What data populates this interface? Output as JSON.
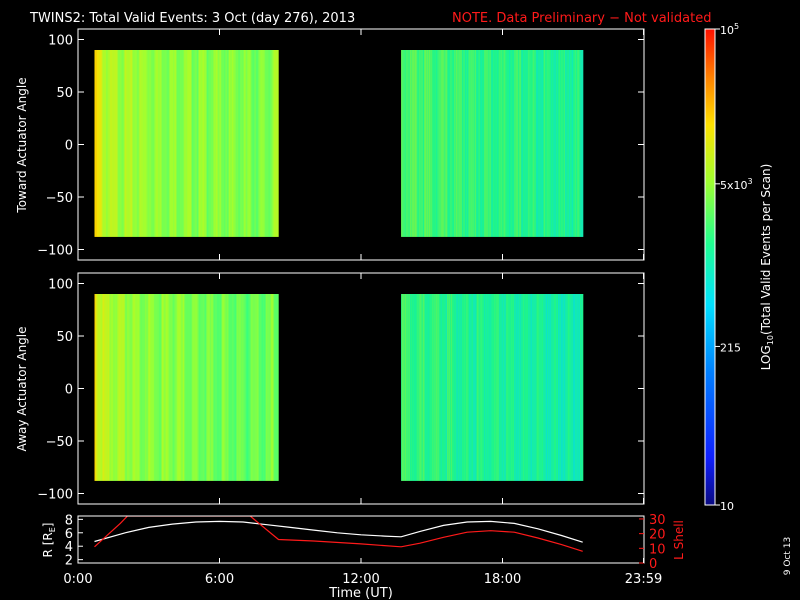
{
  "title": "TWINS2: Total Valid Events:  3 Oct (day 276), 2013",
  "note": "NOTE. Data Preliminary − Not validated",
  "date_stamp": "9 Oct 13",
  "colors": {
    "background": "#000000",
    "axes": "#ffffff",
    "note": "#ff1a1a",
    "r_line": "#ffffff",
    "lshell_line": "#ff1a1a"
  },
  "chart_data": [
    {
      "type": "heatmap",
      "ylabel": "Toward Actuator Angle",
      "xlim": [
        0,
        24
      ],
      "ylim": [
        -110,
        110
      ],
      "yticks": [
        "100",
        "50",
        "0",
        "−50",
        "−100"
      ],
      "data_blocks": [
        {
          "t_start": 0.7,
          "t_end": 8.5,
          "angle_min": -88,
          "angle_max": 90,
          "approx_log10": [
            3.9,
            3.6
          ]
        },
        {
          "t_start": 13.7,
          "t_end": 21.4,
          "angle_min": -88,
          "angle_max": 90,
          "approx_log10": [
            3.5,
            3.2
          ]
        }
      ]
    },
    {
      "type": "heatmap",
      "ylabel": "Away Actuator Angle",
      "xlim": [
        0,
        24
      ],
      "ylim": [
        -110,
        110
      ],
      "yticks": [
        "100",
        "50",
        "0",
        "−50",
        "−100"
      ],
      "data_blocks": [
        {
          "t_start": 0.7,
          "t_end": 8.5,
          "angle_min": -88,
          "angle_max": 90,
          "approx_log10": [
            3.9,
            3.5
          ]
        },
        {
          "t_start": 13.7,
          "t_end": 21.4,
          "angle_min": -88,
          "angle_max": 90,
          "approx_log10": [
            3.4,
            3.1
          ]
        }
      ]
    },
    {
      "type": "line",
      "xlabel": "Time (UT)",
      "xticks": [
        "0:00",
        "6:00",
        "12:00",
        "18:00",
        "23:59"
      ],
      "xlim": [
        0,
        24
      ],
      "ylabel_left": "R [R",
      "ylabel_left_sub": "E",
      "ylabel_left_close": "]",
      "ylabel_right": "L Shell",
      "left_yticks": [
        "8",
        "6",
        "4",
        "2"
      ],
      "right_yticks": [
        "30",
        "20",
        "10",
        "0"
      ],
      "left_ylim": [
        1.5,
        8.5
      ],
      "right_ylim": [
        0,
        32
      ],
      "series": [
        {
          "name": "R",
          "axis": "left",
          "x": [
            0.7,
            2,
            3,
            4,
            5,
            6,
            7,
            8,
            9,
            10,
            11,
            12,
            13,
            13.7,
            14.5,
            15.5,
            16.5,
            17.5,
            18.5,
            19.5,
            20.5,
            21.4
          ],
          "y": [
            4.7,
            6.0,
            6.8,
            7.3,
            7.6,
            7.7,
            7.6,
            7.2,
            6.8,
            6.4,
            6.0,
            5.7,
            5.5,
            5.4,
            6.2,
            7.1,
            7.6,
            7.7,
            7.4,
            6.6,
            5.6,
            4.6
          ]
        },
        {
          "name": "L Shell",
          "axis": "right",
          "x": [
            0.7,
            1.8,
            2.1,
            7.3,
            7.6,
            8.5,
            10,
            12,
            13.7,
            14.5,
            15.5,
            16.5,
            17.5,
            18.5,
            19.5,
            20.5,
            21.4
          ],
          "y": [
            11,
            27,
            32,
            32,
            28,
            16,
            15,
            13,
            11,
            13.5,
            17.5,
            21,
            22,
            21,
            17,
            12.5,
            8
          ]
        }
      ]
    }
  ],
  "colorbar": {
    "label": "LOG",
    "label_sub": "10",
    "label_rest": "(Total Valid Events per Scan)",
    "min": 10,
    "max": 100000,
    "tick_labels": [
      {
        "text": "10",
        "value": 10
      },
      {
        "text": "215",
        "value": 215
      },
      {
        "text": "5x10",
        "sup": "3",
        "value": 5000
      },
      {
        "text": "10",
        "sup": "5",
        "value": 100000
      }
    ]
  }
}
